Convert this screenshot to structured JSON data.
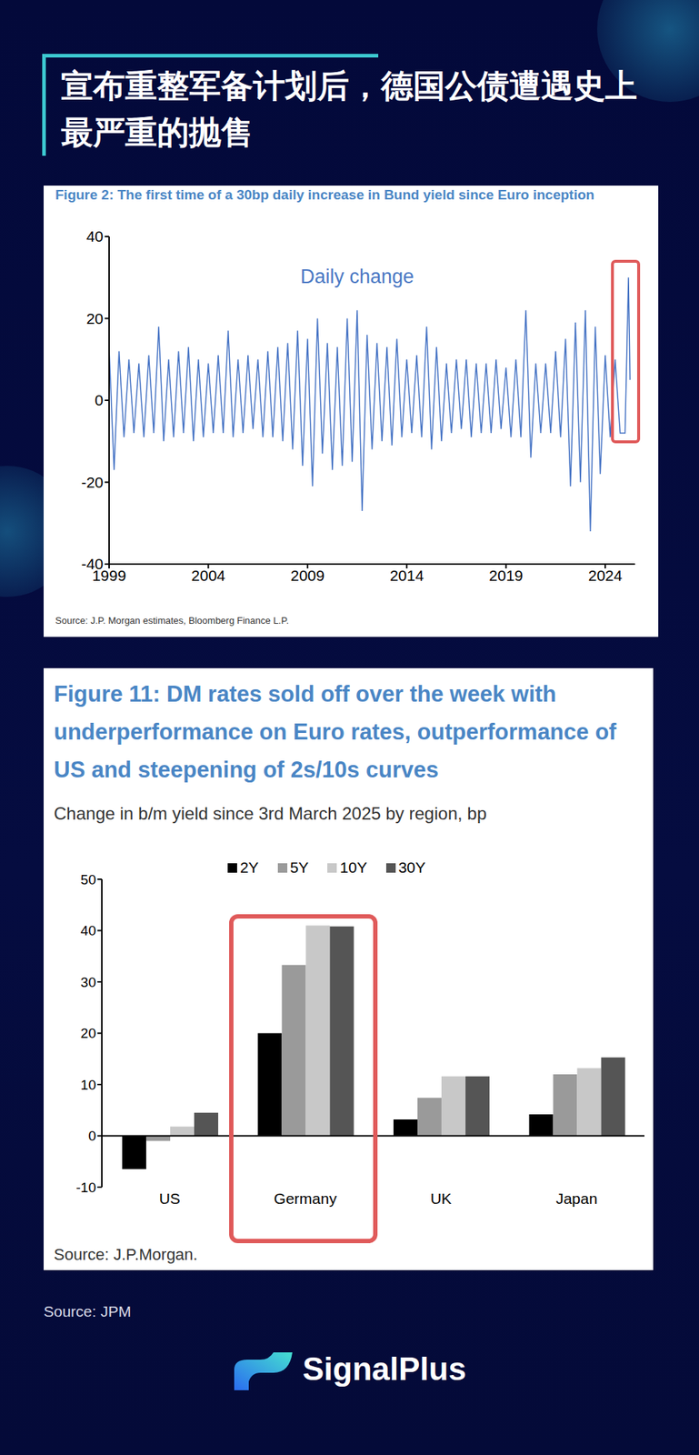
{
  "title": "宣布重整军备计划后，德国公债遭遇史上最严重的抛售",
  "chart_data": [
    {
      "type": "line",
      "title": "Figure 2: The first time of a 30bp daily increase in Bund yield since Euro inception",
      "annotation": "Daily change",
      "source": "Source: J.P. Morgan estimates, Bloomberg Finance L.P.",
      "color": "#4472c4",
      "grid": false,
      "xlim": [
        1999,
        2025.5
      ],
      "xticks": [
        1999,
        2004,
        2009,
        2014,
        2019,
        2024
      ],
      "ylim": [
        -40,
        40
      ],
      "yticks": [
        -40,
        -20,
        0,
        20,
        40
      ],
      "x": [
        1999,
        1999.25,
        1999.5,
        1999.75,
        2000,
        2000.25,
        2000.5,
        2000.75,
        2001,
        2001.25,
        2001.5,
        2001.75,
        2002,
        2002.25,
        2002.5,
        2002.75,
        2003,
        2003.25,
        2003.5,
        2003.75,
        2004,
        2004.25,
        2004.5,
        2004.75,
        2005,
        2005.25,
        2005.5,
        2005.75,
        2006,
        2006.25,
        2006.5,
        2006.75,
        2007,
        2007.25,
        2007.5,
        2007.75,
        2008,
        2008.25,
        2008.5,
        2008.75,
        2009,
        2009.25,
        2009.5,
        2009.75,
        2010,
        2010.25,
        2010.5,
        2010.75,
        2011,
        2011.25,
        2011.5,
        2011.75,
        2012,
        2012.25,
        2012.5,
        2012.75,
        2013,
        2013.25,
        2013.5,
        2013.75,
        2014,
        2014.25,
        2014.5,
        2014.75,
        2015,
        2015.25,
        2015.5,
        2015.75,
        2016,
        2016.25,
        2016.5,
        2016.75,
        2017,
        2017.25,
        2017.5,
        2017.75,
        2018,
        2018.25,
        2018.5,
        2018.75,
        2019,
        2019.25,
        2019.5,
        2019.75,
        2020,
        2020.25,
        2020.5,
        2020.75,
        2021,
        2021.25,
        2021.5,
        2021.75,
        2022,
        2022.25,
        2022.5,
        2022.75,
        2023,
        2023.25,
        2023.5,
        2023.75,
        2024,
        2024.25,
        2024.5,
        2024.75,
        2025,
        2025.17,
        2025.25
      ],
      "values": [
        13,
        -17,
        12,
        -9,
        10,
        -8,
        9,
        -9,
        11,
        -8,
        18,
        -10,
        10,
        -9,
        12,
        -8,
        13,
        -10,
        10,
        -9,
        9,
        -8,
        11,
        -8,
        17,
        -9,
        10,
        -8,
        11,
        -7,
        10,
        -9,
        12,
        -9,
        13,
        -10,
        14,
        -12,
        17,
        -16,
        15,
        -21,
        20,
        -13,
        14,
        -17,
        13,
        -16,
        20,
        -15,
        22,
        -27,
        16,
        -12,
        14,
        -10,
        13,
        -11,
        15,
        -9,
        10,
        -8,
        11,
        -9,
        18,
        -12,
        13,
        -10,
        9,
        -8,
        10,
        -7,
        10,
        -9,
        9,
        -8,
        9,
        -8,
        10,
        -7,
        8,
        -9,
        10,
        -9,
        22,
        -14,
        9,
        -8,
        9,
        -8,
        12,
        -9,
        15,
        -21,
        19,
        -20,
        22,
        -32,
        18,
        -18,
        11,
        -9,
        10,
        -8,
        -8,
        30,
        5
      ]
    },
    {
      "type": "bar",
      "title": "Figure 11: DM rates sold off over the week with underperformance on Euro rates, outperformance of US and steepening of 2s/10s curves",
      "subtitle": "Change in b/m yield since 3rd March 2025 by region, bp",
      "source": "Source: J.P.Morgan.",
      "legend": "top",
      "grid": false,
      "categories": [
        "US",
        "Germany",
        "UK",
        "Japan"
      ],
      "series": [
        {
          "name": "2Y",
          "color": "#000000",
          "values": [
            -6.5,
            20,
            3.2,
            4.2
          ]
        },
        {
          "name": "5Y",
          "color": "#9a9a9a",
          "values": [
            -1,
            33.3,
            7.4,
            12
          ]
        },
        {
          "name": "10Y",
          "color": "#c8c8c8",
          "values": [
            1.8,
            41,
            11.6,
            13.2
          ]
        },
        {
          "name": "30Y",
          "color": "#555555",
          "values": [
            4.5,
            40.8,
            11.6,
            15.3
          ]
        }
      ],
      "ylim": [
        -10,
        50
      ],
      "yticks": [
        -10,
        0,
        10,
        20,
        30,
        40,
        50
      ]
    }
  ],
  "source": "Source: JPM",
  "logo": "SignalPlus"
}
